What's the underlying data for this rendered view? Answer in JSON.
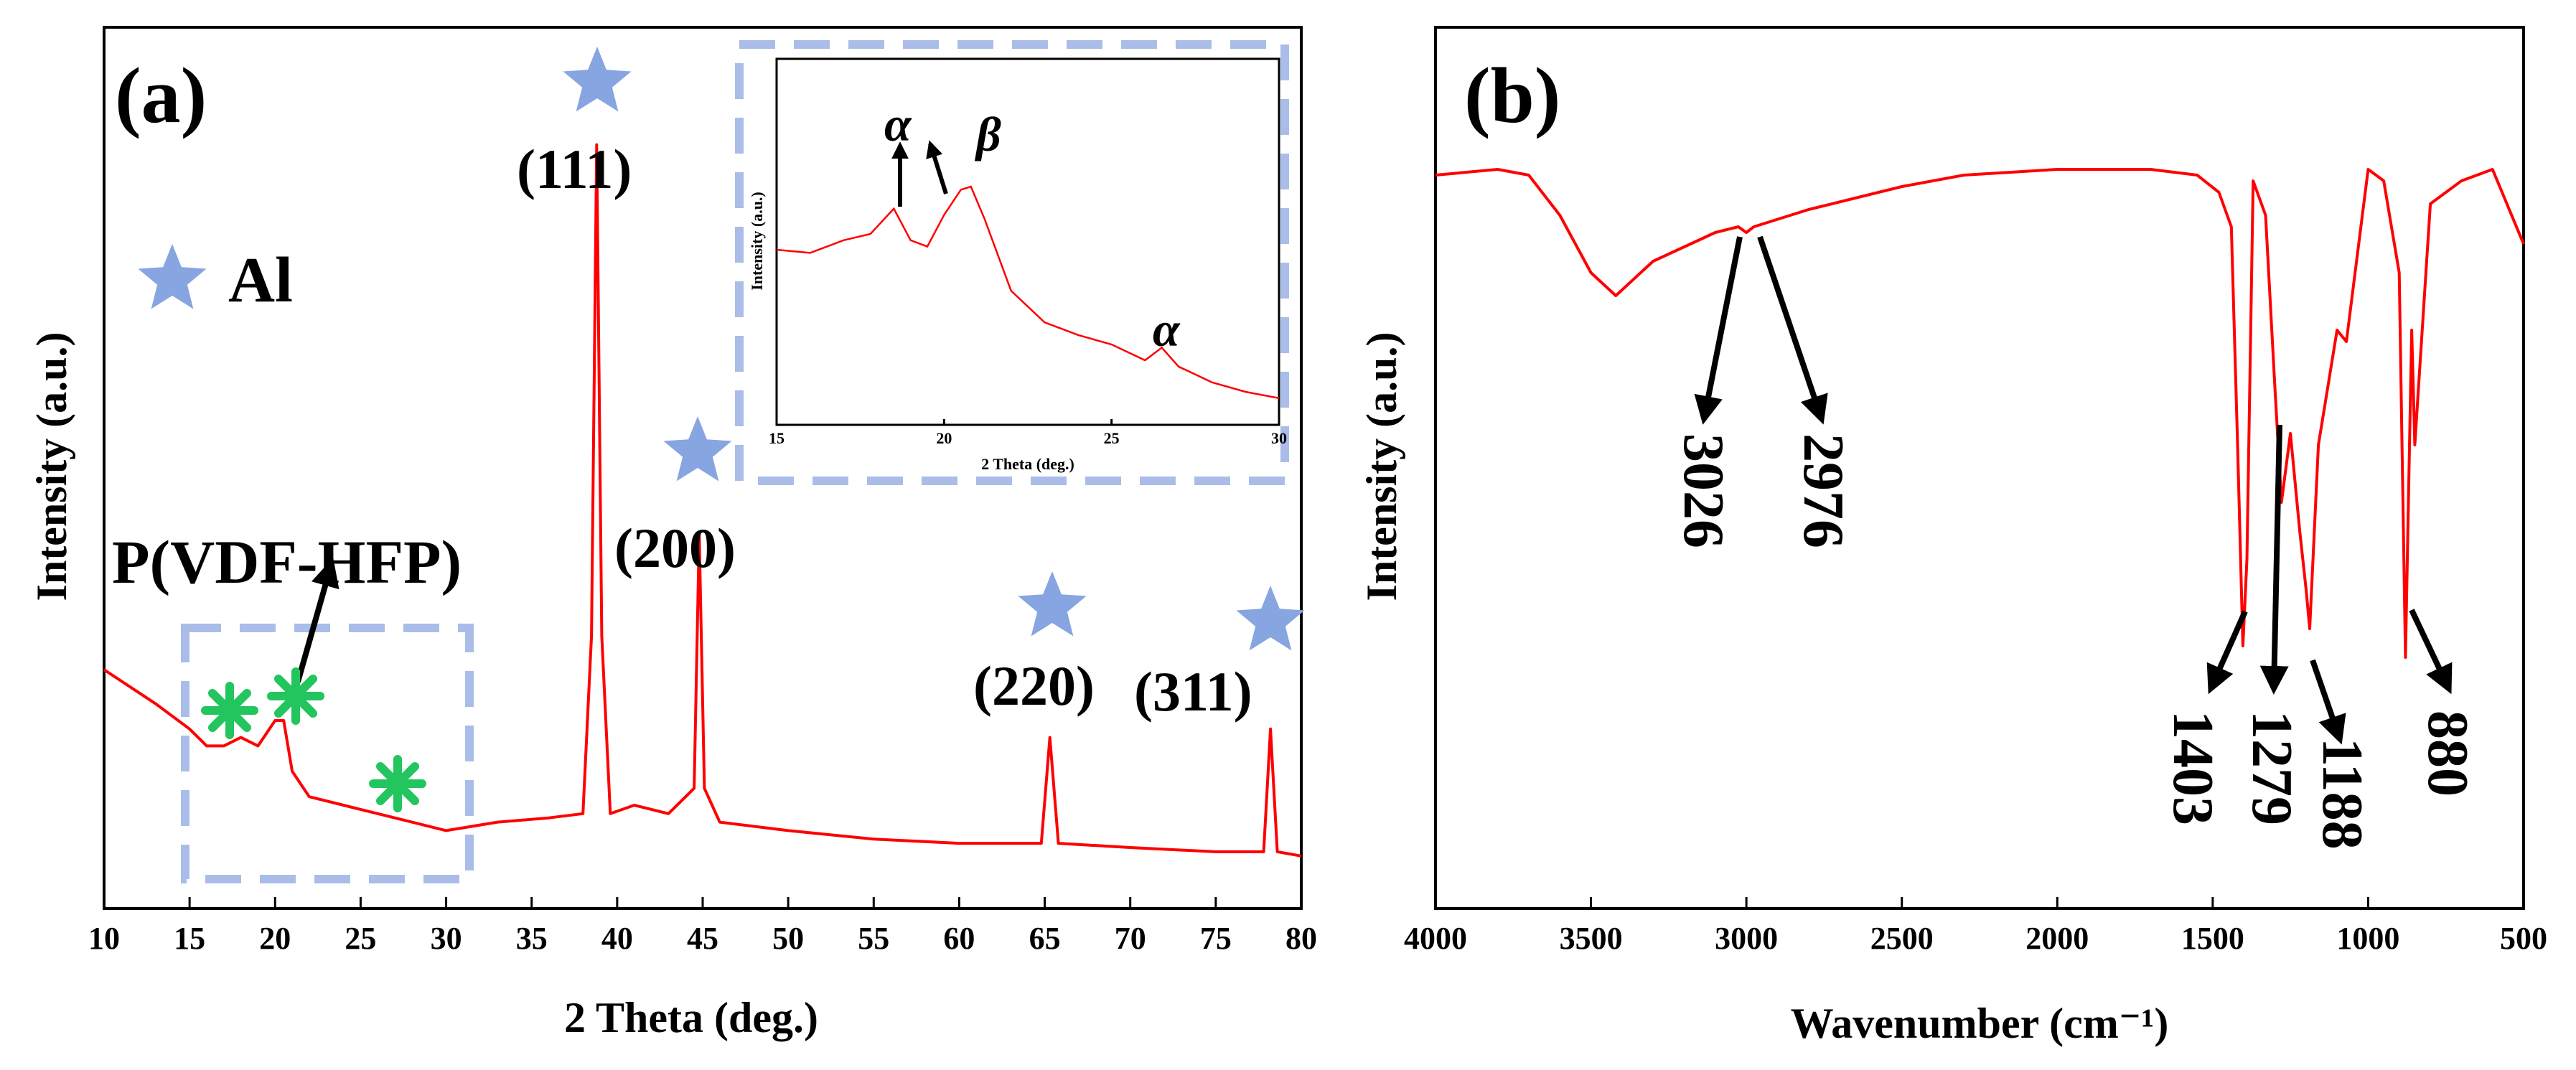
{
  "panel_a": {
    "label": "(a)",
    "legend_text": "Al",
    "pvdf_label": "P(VDF-HFP)",
    "peak_labels": [
      "(111)",
      "(200)",
      "(220)",
      "(311)"
    ],
    "inset_greek": [
      "α",
      "β",
      "α"
    ]
  },
  "panel_b": {
    "label": "(b)",
    "peak_labels": [
      "3026",
      "2976",
      "1403",
      "1279",
      "1188",
      "880"
    ]
  },
  "colors": {
    "curve": "#ff0000",
    "star": "#87a5e0",
    "box": "#a9bde8",
    "asterisk": "#22c55e"
  },
  "chart_data": [
    {
      "type": "line",
      "title": "(a)",
      "xlabel": "2 Theta (deg.)",
      "ylabel": "Intensity (a.u.)",
      "xlim": [
        10,
        80
      ],
      "ylim": [
        0,
        100
      ],
      "xticks": [
        10,
        15,
        20,
        25,
        30,
        35,
        40,
        45,
        50,
        55,
        60,
        65,
        70,
        75,
        80
      ],
      "x": [
        10,
        13,
        15,
        16,
        17,
        18,
        19,
        20,
        20.5,
        21,
        22,
        24,
        26,
        28,
        30,
        33,
        36,
        38,
        38.5,
        38.8,
        39.1,
        39.6,
        41,
        43,
        44.5,
        44.8,
        45.1,
        46,
        50,
        55,
        60,
        64.8,
        65.3,
        65.8,
        70,
        75,
        77.8,
        78.2,
        78.6,
        80
      ],
      "y": [
        26,
        22,
        19,
        17,
        17,
        18,
        17,
        20,
        20,
        14,
        11,
        10,
        9,
        8,
        7,
        8,
        8.5,
        9,
        30,
        88,
        30,
        9,
        10,
        9,
        12,
        42,
        12,
        8,
        7,
        6,
        5.5,
        5.5,
        18,
        5.5,
        5,
        4.5,
        4.5,
        19,
        4.5,
        4
      ],
      "peaks": [
        {
          "label": "(111)",
          "x": 38.8
        },
        {
          "label": "(200)",
          "x": 44.8
        },
        {
          "label": "(220)",
          "x": 65.3
        },
        {
          "label": "(311)",
          "x": 78.2
        }
      ],
      "annotations": [
        "Al",
        "P(VDF-HFP)"
      ]
    },
    {
      "type": "line",
      "title": "inset",
      "xlabel": "2 Theta (deg.)",
      "ylabel": "Intensity (a.u.)",
      "xlim": [
        15,
        30
      ],
      "ylim": [
        0,
        100
      ],
      "xticks": [
        15,
        20,
        25,
        30
      ],
      "x": [
        15,
        16,
        17,
        17.8,
        18.5,
        19,
        19.5,
        20,
        20.5,
        20.8,
        21.2,
        22,
        23,
        24,
        25,
        26,
        26.5,
        27,
        28,
        29,
        30
      ],
      "y": [
        55,
        54,
        58,
        60,
        68,
        58,
        56,
        66,
        74,
        75,
        65,
        42,
        32,
        28,
        25,
        20,
        24,
        18,
        13,
        10,
        8
      ],
      "annotations": [
        {
          "label": "α",
          "x": 18.5
        },
        {
          "label": "β",
          "x": 20.8
        },
        {
          "label": "α",
          "x": 26.5
        }
      ]
    },
    {
      "type": "line",
      "title": "(b)",
      "xlabel": "Wavenumber (cm⁻¹)",
      "ylabel": "Intensity (a.u.)",
      "xlim": [
        4000,
        500
      ],
      "ylim": [
        0,
        100
      ],
      "xticks": [
        4000,
        3500,
        3000,
        2500,
        2000,
        1500,
        1000,
        500
      ],
      "x": [
        4000,
        3800,
        3700,
        3600,
        3500,
        3420,
        3300,
        3100,
        3026,
        3000,
        2976,
        2800,
        2500,
        2300,
        2000,
        1700,
        1550,
        1480,
        1440,
        1420,
        1403,
        1390,
        1370,
        1330,
        1300,
        1279,
        1250,
        1220,
        1200,
        1188,
        1160,
        1100,
        1070,
        1000,
        950,
        900,
        880,
        860,
        850,
        800,
        700,
        600,
        500
      ],
      "y": [
        87,
        88,
        87,
        80,
        70,
        66,
        72,
        77,
        78,
        77,
        78,
        81,
        85,
        87,
        88,
        88,
        87,
        84,
        78,
        40,
        5,
        20,
        86,
        80,
        50,
        30,
        42,
        25,
        15,
        8,
        40,
        60,
        58,
        88,
        86,
        70,
        3,
        60,
        40,
        82,
        86,
        88,
        75
      ],
      "peaks": [
        {
          "label": "3026",
          "x": 3026
        },
        {
          "label": "2976",
          "x": 2976
        },
        {
          "label": "1403",
          "x": 1403
        },
        {
          "label": "1279",
          "x": 1279
        },
        {
          "label": "1188",
          "x": 1188
        },
        {
          "label": "880",
          "x": 880
        }
      ]
    }
  ]
}
